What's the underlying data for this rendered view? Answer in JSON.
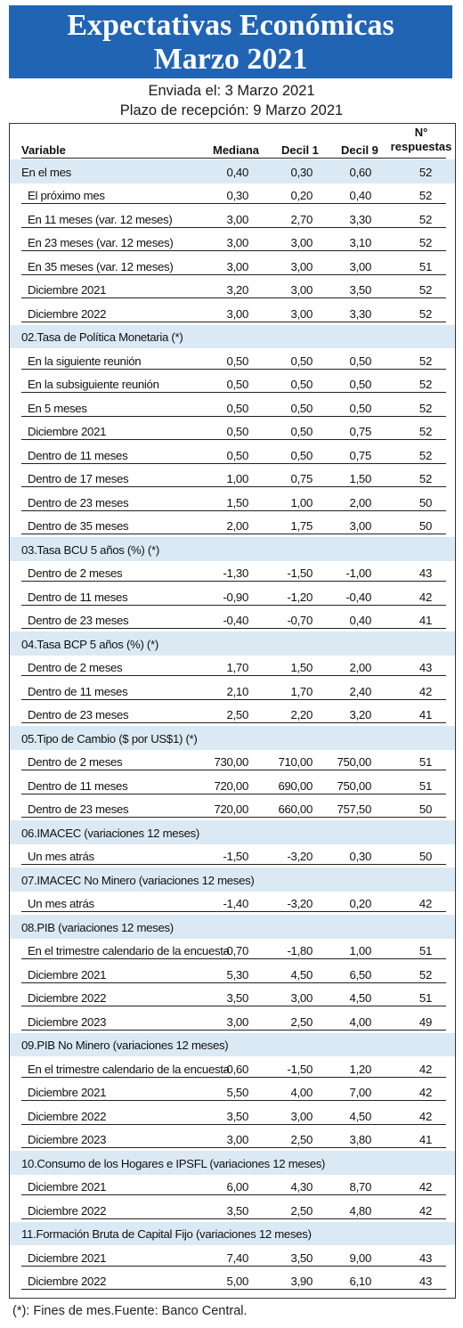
{
  "banner": {
    "line1": "Expectativas Económicas",
    "line2": "Marzo 2021"
  },
  "sent": "Enviada el: 3 Marzo 2021",
  "deadline": "Plazo de recepción: 9 Marzo 2021",
  "columns": {
    "variable": "Variable",
    "median": "Mediana",
    "decil1": "Decil 1",
    "decil9": "Decil 9",
    "n_top": "N°",
    "n_bottom": "respuestas"
  },
  "rows": [
    {
      "type": "data",
      "label": "En el mes",
      "med": "0,40",
      "d1": "0,30",
      "d9": "0,60",
      "n": "52",
      "first": true
    },
    {
      "type": "data",
      "label": "El próximo mes",
      "med": "0,30",
      "d1": "0,20",
      "d9": "0,40",
      "n": "52"
    },
    {
      "type": "data",
      "label": "En 11 meses (var. 12 meses)",
      "med": "3,00",
      "d1": "2,70",
      "d9": "3,30",
      "n": "52"
    },
    {
      "type": "data",
      "label": "En 23 meses (var. 12 meses)",
      "med": "3,00",
      "d1": "3,00",
      "d9": "3,10",
      "n": "52"
    },
    {
      "type": "data",
      "label": "En 35 meses (var. 12 meses)",
      "med": "3,00",
      "d1": "3,00",
      "d9": "3,00",
      "n": "51"
    },
    {
      "type": "data",
      "label": "Diciembre 2021",
      "med": "3,20",
      "d1": "3,00",
      "d9": "3,50",
      "n": "52"
    },
    {
      "type": "data",
      "label": "Diciembre 2022",
      "med": "3,00",
      "d1": "3,00",
      "d9": "3,30",
      "n": "52"
    },
    {
      "type": "section",
      "label": "02.Tasa de Política Monetaria  (*)"
    },
    {
      "type": "data",
      "label": "En la siguiente reunión",
      "med": "0,50",
      "d1": "0,50",
      "d9": "0,50",
      "n": "52"
    },
    {
      "type": "data",
      "label": "En la subsiguiente reunión",
      "med": "0,50",
      "d1": "0,50",
      "d9": "0,50",
      "n": "52"
    },
    {
      "type": "data",
      "label": "En 5 meses",
      "med": "0,50",
      "d1": "0,50",
      "d9": "0,50",
      "n": "52"
    },
    {
      "type": "data",
      "label": "Diciembre 2021",
      "med": "0,50",
      "d1": "0,50",
      "d9": "0,75",
      "n": "52"
    },
    {
      "type": "data",
      "label": "Dentro de 11 meses",
      "med": "0,50",
      "d1": "0,50",
      "d9": "0,75",
      "n": "52"
    },
    {
      "type": "data",
      "label": "Dentro de 17 meses",
      "med": "1,00",
      "d1": "0,75",
      "d9": "1,50",
      "n": "52"
    },
    {
      "type": "data",
      "label": "Dentro de 23 meses",
      "med": "1,50",
      "d1": "1,00",
      "d9": "2,00",
      "n": "50"
    },
    {
      "type": "data",
      "label": "Dentro de 35 meses",
      "med": "2,00",
      "d1": "1,75",
      "d9": "3,00",
      "n": "50"
    },
    {
      "type": "section",
      "label": "03.Tasa BCU 5 años  (%)  (*)"
    },
    {
      "type": "data",
      "label": "Dentro de 2 meses",
      "med": "-1,30",
      "d1": "-1,50",
      "d9": "-1,00",
      "n": "43"
    },
    {
      "type": "data",
      "label": "Dentro de 11 meses",
      "med": "-0,90",
      "d1": "-1,20",
      "d9": "-0,40",
      "n": "42"
    },
    {
      "type": "data",
      "label": "Dentro de 23 meses",
      "med": "-0,40",
      "d1": "-0,70",
      "d9": "0,40",
      "n": "41"
    },
    {
      "type": "section",
      "label": "04.Tasa BCP 5 años  (%) (*)"
    },
    {
      "type": "data",
      "label": "Dentro de 2 meses",
      "med": "1,70",
      "d1": "1,50",
      "d9": "2,00",
      "n": "43"
    },
    {
      "type": "data",
      "label": "Dentro de 11 meses",
      "med": "2,10",
      "d1": "1,70",
      "d9": "2,40",
      "n": "42"
    },
    {
      "type": "data",
      "label": "Dentro de 23 meses",
      "med": "2,50",
      "d1": "2,20",
      "d9": "3,20",
      "n": "41"
    },
    {
      "type": "section",
      "label": "05.Tipo de Cambio  ($ por US$1) (*)"
    },
    {
      "type": "data",
      "label": "Dentro de 2 meses",
      "med": "730,00",
      "d1": "710,00",
      "d9": "750,00",
      "n": "51"
    },
    {
      "type": "data",
      "label": "Dentro de 11 meses",
      "med": "720,00",
      "d1": "690,00",
      "d9": "750,00",
      "n": "51"
    },
    {
      "type": "data",
      "label": "Dentro de 23 meses",
      "med": "720,00",
      "d1": "660,00",
      "d9": "757,50",
      "n": "50"
    },
    {
      "type": "section",
      "label": "06.IMACEC  (variaciones 12 meses)"
    },
    {
      "type": "data",
      "label": "Un mes atrás",
      "med": "-1,50",
      "d1": "-3,20",
      "d9": "0,30",
      "n": "50"
    },
    {
      "type": "section",
      "label": "07.IMACEC No Minero (variaciones 12 meses)"
    },
    {
      "type": "data",
      "label": "Un mes atrás",
      "med": "-1,40",
      "d1": "-3,20",
      "d9": "0,20",
      "n": "42"
    },
    {
      "type": "section",
      "label": "08.PIB  (variaciones 12 meses)"
    },
    {
      "type": "data",
      "label": "En el trimestre calendario de la encuesta",
      "med": "-0,70",
      "d1": "-1,80",
      "d9": "1,00",
      "n": "51"
    },
    {
      "type": "data",
      "label": "Diciembre 2021",
      "med": "5,30",
      "d1": "4,50",
      "d9": "6,50",
      "n": "52"
    },
    {
      "type": "data",
      "label": "Diciembre 2022",
      "med": "3,50",
      "d1": "3,00",
      "d9": "4,50",
      "n": "51"
    },
    {
      "type": "data",
      "label": "Diciembre 2023",
      "med": "3,00",
      "d1": "2,50",
      "d9": "4,00",
      "n": "49"
    },
    {
      "type": "section",
      "label": "09.PIB No Minero (variaciones 12 meses)"
    },
    {
      "type": "data",
      "label": "En el trimestre calendario de la encuesta",
      "med": "-0,60",
      "d1": "-1,50",
      "d9": "1,20",
      "n": "42"
    },
    {
      "type": "data",
      "label": "Diciembre 2021",
      "med": "5,50",
      "d1": "4,00",
      "d9": "7,00",
      "n": "42"
    },
    {
      "type": "data",
      "label": "Diciembre 2022",
      "med": "3,50",
      "d1": "3,00",
      "d9": "4,50",
      "n": "42"
    },
    {
      "type": "data",
      "label": "Diciembre 2023",
      "med": "3,00",
      "d1": "2,50",
      "d9": "3,80",
      "n": "41"
    },
    {
      "type": "section",
      "label": "10.Consumo de los Hogares e IPSFL  (variaciones 12 meses)"
    },
    {
      "type": "data",
      "label": "Diciembre 2021",
      "med": "6,00",
      "d1": "4,30",
      "d9": "8,70",
      "n": "42"
    },
    {
      "type": "data",
      "label": "Diciembre 2022",
      "med": "3,50",
      "d1": "2,50",
      "d9": "4,80",
      "n": "42"
    },
    {
      "type": "section",
      "label": "11.Formación Bruta de Capital Fijo  (variaciones 12 meses)"
    },
    {
      "type": "data",
      "label": "Diciembre 2021",
      "med": "7,40",
      "d1": "3,50",
      "d9": "9,00",
      "n": "43"
    },
    {
      "type": "data",
      "label": "Diciembre 2022",
      "med": "5,00",
      "d1": "3,90",
      "d9": "6,10",
      "n": "43"
    }
  ],
  "footnote": "(*): Fines de mes.Fuente: Banco Central.",
  "colors": {
    "banner": "#2164b4",
    "section": "#dbe9f4"
  }
}
